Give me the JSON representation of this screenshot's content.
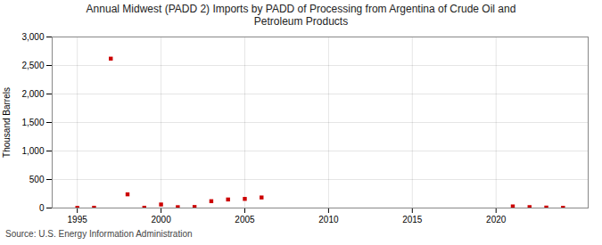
{
  "chart_data": {
    "type": "scatter",
    "title": "Annual Midwest (PADD 2) Imports by PADD of Processing from Argentina of Crude Oil and\nPetroleum Products",
    "ylabel": "Thousand Barrels",
    "source": "Source: U.S. Energy Information Administration",
    "x": [
      1995,
      1996,
      1997,
      1998,
      1999,
      2000,
      2001,
      2002,
      2003,
      2004,
      2005,
      2006,
      2021,
      2022,
      2023,
      2024
    ],
    "values": [
      2,
      5,
      2620,
      240,
      5,
      62,
      15,
      18,
      120,
      150,
      160,
      185,
      28,
      16,
      8,
      4
    ],
    "color": "#cc0000",
    "marker": "square",
    "xlim": [
      1993.5,
      2025.5
    ],
    "xticks": [
      1995,
      2000,
      2005,
      2010,
      2015,
      2020
    ],
    "ylim": [
      0,
      3000
    ],
    "yticks": [
      0,
      500,
      {
        "value": 1000,
        "label": "1,000"
      },
      {
        "value": 1500,
        "label": "1,500"
      },
      {
        "value": 2000,
        "label": "2,000"
      },
      {
        "value": 2500,
        "label": "2,500"
      },
      {
        "value": 3000,
        "label": "3,000"
      }
    ],
    "grid": true
  }
}
